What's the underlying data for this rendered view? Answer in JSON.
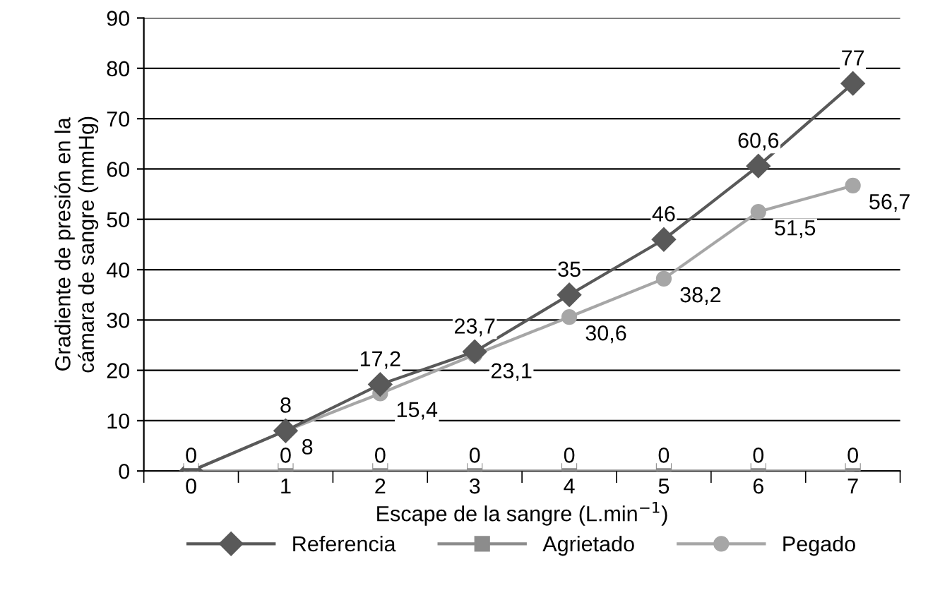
{
  "chart_data": {
    "type": "line",
    "xlabel": "Escape de la sangre (L.min$^{−1}$)",
    "ylabel": "Gradiente de presión en la\ncámara de sangre (mmHg)",
    "categories": [
      "0",
      "1",
      "2",
      "3",
      "4",
      "5",
      "6",
      "7"
    ],
    "series": [
      {
        "name": "Referencia",
        "color": "#595959",
        "marker": "diamond",
        "values": [
          0,
          8,
          17.2,
          23.7,
          35,
          46,
          60.6,
          77
        ],
        "value_labels": [
          null,
          "8",
          "17,2",
          "23,7",
          "35",
          "46",
          "60,6",
          "77"
        ]
      },
      {
        "name": "Agrietado",
        "color": "#8c8c8c",
        "marker": "square",
        "values": [
          0,
          0,
          0,
          0,
          0,
          0,
          0,
          0
        ],
        "value_labels": [
          "0",
          "0",
          "0",
          "0",
          "0",
          "0",
          "0",
          "0"
        ]
      },
      {
        "name": "Pegado",
        "color": "#a6a6a6",
        "marker": "circle",
        "values": [
          0,
          8,
          15.4,
          23.1,
          30.6,
          38.2,
          51.5,
          56.7
        ],
        "value_labels": [
          null,
          "8",
          "15,4",
          "23,1",
          "30,6",
          "38,2",
          "51,5",
          "56,7"
        ]
      }
    ],
    "ylim": [
      0,
      90
    ],
    "yticks": [
      0,
      10,
      20,
      30,
      40,
      50,
      60,
      70,
      80,
      90
    ],
    "grid": "y",
    "legend": "bottom",
    "line_style": "solid"
  }
}
